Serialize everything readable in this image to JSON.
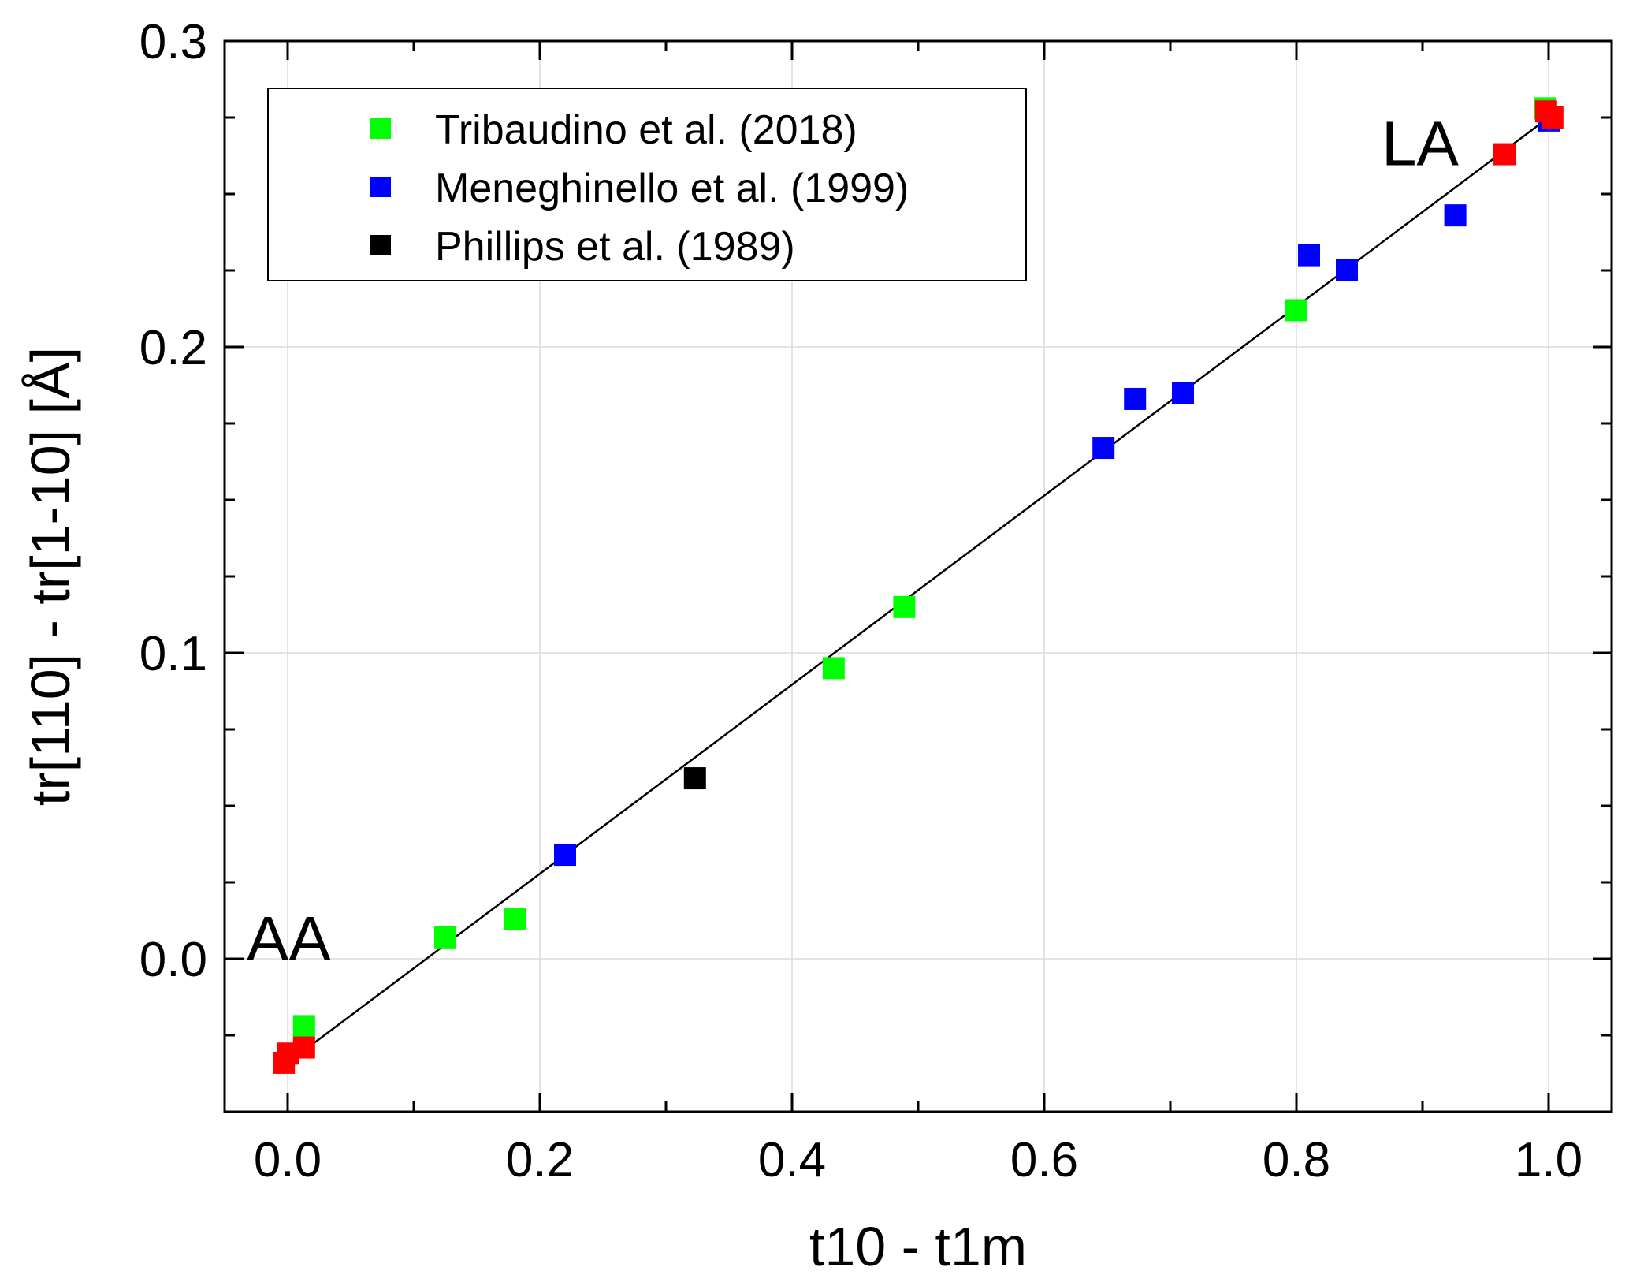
{
  "chart_data": {
    "type": "scatter",
    "xlabel": "t10 - t1m",
    "ylabel": "tr[110] - tr[1-10] [Å]",
    "xlim": [
      -0.05,
      1.05
    ],
    "ylim": [
      -0.05,
      0.3
    ],
    "xticks": [
      0.0,
      0.2,
      0.4,
      0.6,
      0.8,
      1.0
    ],
    "xtick_labels": [
      "0.0",
      "0.2",
      "0.4",
      "0.6",
      "0.8",
      "1.0"
    ],
    "yticks": [
      0.0,
      0.1,
      0.2,
      0.3
    ],
    "ytick_labels": [
      "0.0",
      "0.1",
      "0.2",
      "0.3"
    ],
    "grid": true,
    "legend_position": "top-left",
    "series": [
      {
        "name": "Tribaudino et al. (2018)",
        "color": "#00ff00",
        "in_legend": true,
        "x": [
          0.013,
          0.125,
          0.18,
          0.433,
          0.489,
          0.8,
          0.997
        ],
        "y": [
          -0.022,
          0.007,
          0.013,
          0.095,
          0.115,
          0.212,
          0.278
        ]
      },
      {
        "name": "Meneghinello et al. (1999)",
        "color": "#0000ff",
        "in_legend": true,
        "x": [
          0.22,
          0.647,
          0.672,
          0.71,
          0.81,
          0.84,
          0.926,
          1.0
        ],
        "y": [
          0.034,
          0.167,
          0.183,
          0.185,
          0.23,
          0.225,
          0.243,
          0.274
        ]
      },
      {
        "name": "Phillips et al. (1989)",
        "color": "#000000",
        "in_legend": true,
        "x": [
          0.323
        ],
        "y": [
          0.059
        ]
      },
      {
        "name": "",
        "color": "#ff0000",
        "in_legend": false,
        "x": [
          -0.003,
          0.0,
          0.013,
          0.965,
          0.998,
          1.003
        ],
        "y": [
          -0.034,
          -0.031,
          -0.029,
          0.263,
          0.277,
          0.275
        ]
      }
    ],
    "fit_line": {
      "x": [
        0.0,
        1.0
      ],
      "y": [
        -0.034,
        0.275
      ],
      "color": "#000000"
    },
    "annotations": [
      {
        "text": "AA",
        "x": 0.005,
        "y": 0.002
      },
      {
        "text": "LA",
        "x": 0.905,
        "y": 0.262
      }
    ]
  }
}
